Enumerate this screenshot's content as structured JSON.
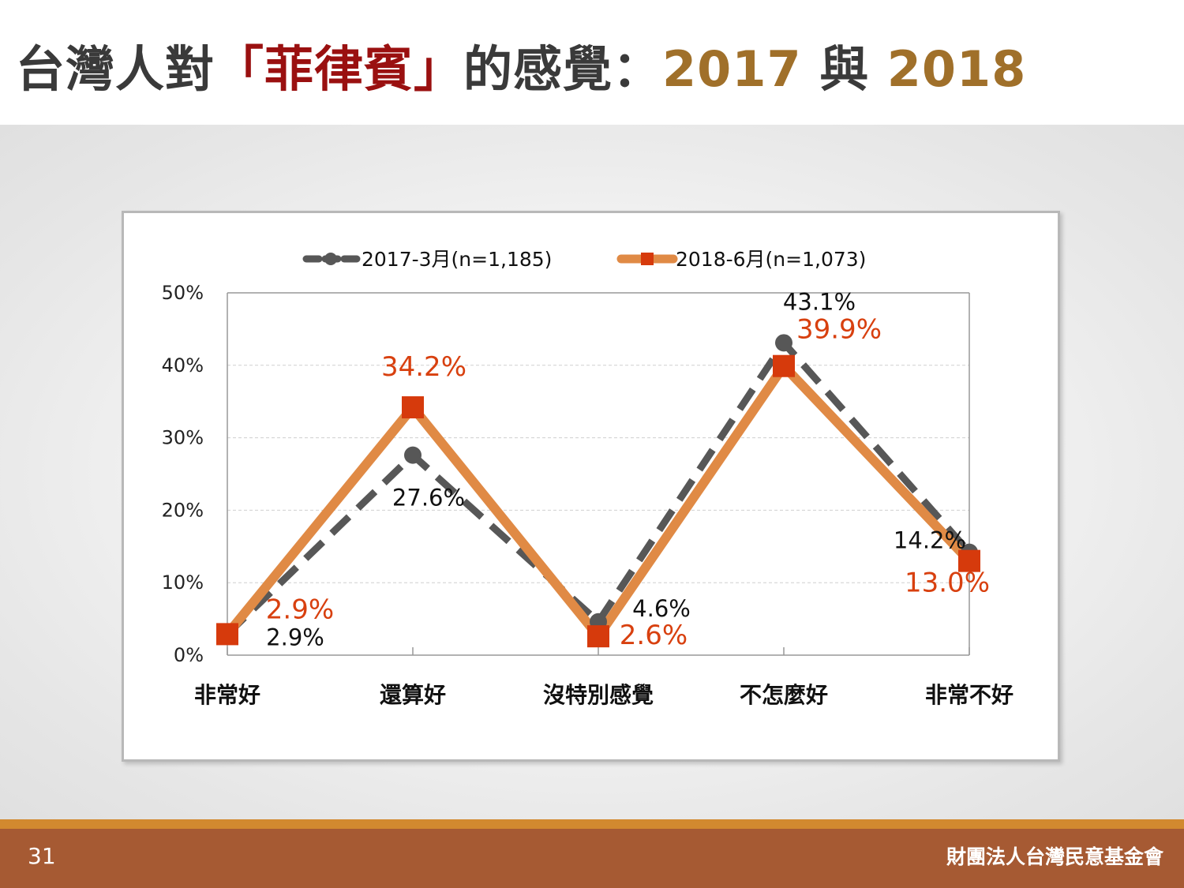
{
  "slide": {
    "title_prefix": "台灣人對",
    "title_highlight": "「菲律賓」",
    "title_mid": "的感覺：",
    "title_year1": "2017",
    "title_conj": " 與 ",
    "title_year2": "2018",
    "page_number": "31",
    "organization": "財團法人台灣民意基金會"
  },
  "colors": {
    "series_2017": "#575757",
    "series_2018_line": "#e08a45",
    "series_2018_marker": "#d63a0c",
    "label_2018": "#d8400f",
    "title_highlight": "#9a1010",
    "title_year": "#a0702a",
    "footer_bar": "#a65a33",
    "footer_line": "#d2892f"
  },
  "chart_data": {
    "type": "line",
    "categories": [
      "非常好",
      "還算好",
      "沒特別感覺",
      "不怎麼好",
      "非常不好"
    ],
    "ylim": [
      0,
      50
    ],
    "yticks": [
      "0%",
      "10%",
      "20%",
      "30%",
      "40%",
      "50%"
    ],
    "grid": true,
    "legend_position": "top",
    "series": [
      {
        "name": "2017-3月(n=1,185)",
        "values": [
          2.9,
          27.6,
          4.6,
          43.1,
          14.2
        ],
        "labels": [
          "2.9%",
          "27.6%",
          "4.6%",
          "43.1%",
          "14.2%"
        ],
        "style": "dashed",
        "marker": "circle"
      },
      {
        "name": "2018-6月(n=1,073)",
        "values": [
          2.9,
          34.2,
          2.6,
          39.9,
          13.0
        ],
        "labels": [
          "2.9%",
          "34.2%",
          "2.6%",
          "39.9%",
          "13.0%"
        ],
        "style": "solid",
        "marker": "square"
      }
    ]
  }
}
